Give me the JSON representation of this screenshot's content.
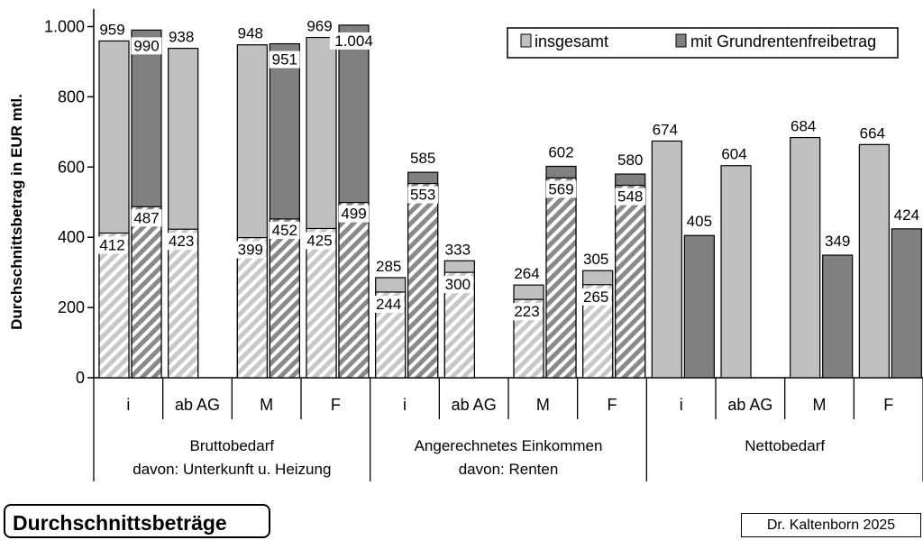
{
  "chart_data": {
    "type": "bar",
    "ylabel": "Durchschnittsbetrag in EUR mtl.",
    "ylim": [
      0,
      1050
    ],
    "yticks": [
      0,
      200,
      400,
      600,
      800,
      1000
    ],
    "ytick_labels": [
      "0",
      "200",
      "400",
      "600",
      "800",
      "1.000"
    ],
    "legend": {
      "placement": "top-right",
      "entries": [
        "insgesamt",
        "mit Grundrentenfreibetrag"
      ]
    },
    "colors": {
      "insgesamt": "#c0c0c0",
      "mit Grundrentenfreibetrag": "#808080"
    },
    "groups": [
      {
        "label_line1": "Bruttobedarf",
        "label_line2": "davon: Unterkunft u. Heizung",
        "categories": [
          "i",
          "ab AG",
          "M",
          "F"
        ],
        "insgesamt": [
          959,
          938,
          948,
          969
        ],
        "insgesamt_labels": [
          "959",
          "938",
          "948",
          "969"
        ],
        "insgesamt_davon": [
          412,
          423,
          399,
          425
        ],
        "insgesamt_davon_labels": [
          "412",
          "423",
          "399",
          "425"
        ],
        "grundrente": [
          990,
          null,
          951,
          1004
        ],
        "grundrente_labels": [
          "990",
          "",
          "951",
          "1.004"
        ],
        "grundrente_davon": [
          487,
          null,
          452,
          499
        ],
        "grundrente_davon_labels": [
          "487",
          "",
          "452",
          "499"
        ]
      },
      {
        "label_line1": "Angerechnetes Einkommen",
        "label_line2": "davon: Renten",
        "categories": [
          "i",
          "ab AG",
          "M",
          "F"
        ],
        "insgesamt": [
          285,
          333,
          264,
          305
        ],
        "insgesamt_labels": [
          "285",
          "333",
          "264",
          "305"
        ],
        "insgesamt_davon": [
          244,
          300,
          223,
          265
        ],
        "insgesamt_davon_labels": [
          "244",
          "300",
          "223",
          "265"
        ],
        "grundrente": [
          585,
          null,
          602,
          580
        ],
        "grundrente_labels": [
          "585",
          "",
          "602",
          "580"
        ],
        "grundrente_davon": [
          553,
          null,
          569,
          548
        ],
        "grundrente_davon_labels": [
          "553",
          "",
          "569",
          "548"
        ]
      },
      {
        "label_line1": "Nettobedarf",
        "label_line2": "",
        "categories": [
          "i",
          "ab AG",
          "M",
          "F"
        ],
        "insgesamt": [
          674,
          604,
          684,
          664
        ],
        "insgesamt_labels": [
          "674",
          "604",
          "684",
          "664"
        ],
        "insgesamt_davon": [
          null,
          null,
          null,
          null
        ],
        "insgesamt_davon_labels": [
          "",
          "",
          "",
          ""
        ],
        "grundrente": [
          405,
          null,
          349,
          424
        ],
        "grundrente_labels": [
          "405",
          "",
          "349",
          "424"
        ],
        "grundrente_davon": [
          null,
          null,
          null,
          null
        ],
        "grundrente_davon_labels": [
          "",
          "",
          "",
          ""
        ]
      }
    ]
  },
  "title_box": "Durchschnittsbeträge",
  "credit": "Dr. Kaltenborn 2025"
}
